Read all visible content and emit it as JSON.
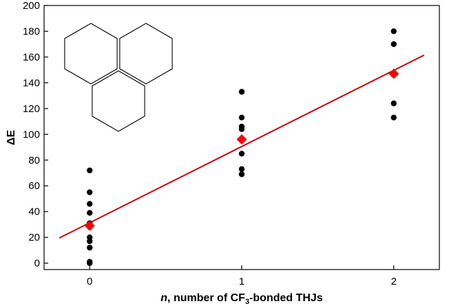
{
  "chart_data": {
    "type": "scatter",
    "title": "",
    "xlabel_italic": "n",
    "xlabel_prefix": ", number of CF",
    "xlabel_sub": "3",
    "xlabel_suffix": "-bonded THJs",
    "ylabel": "ΔE",
    "xlim": [
      -0.3,
      2.3
    ],
    "ylim": [
      -5,
      200
    ],
    "xticks": [
      0,
      1,
      2
    ],
    "yticks": [
      0,
      20,
      40,
      60,
      80,
      100,
      120,
      140,
      160,
      180,
      200
    ],
    "grid": false,
    "legend": "none",
    "series": [
      {
        "kind": "points",
        "color": "#000000",
        "marker": "circle",
        "points": [
          [
            0,
            72
          ],
          [
            0,
            55
          ],
          [
            0,
            46
          ],
          [
            0,
            39
          ],
          [
            0,
            31
          ],
          [
            0,
            28
          ],
          [
            0,
            20
          ],
          [
            0,
            17
          ],
          [
            0,
            12
          ],
          [
            0,
            1
          ],
          [
            0,
            0
          ],
          [
            1,
            133
          ],
          [
            1,
            113
          ],
          [
            1,
            106
          ],
          [
            1,
            104
          ],
          [
            1,
            96
          ],
          [
            1,
            85
          ],
          [
            1,
            73
          ],
          [
            1,
            69
          ],
          [
            2,
            180
          ],
          [
            2,
            170
          ],
          [
            2,
            124
          ],
          [
            2,
            113
          ]
        ]
      },
      {
        "kind": "means",
        "color": "#ff0000",
        "marker": "diamond",
        "points": [
          [
            0,
            29
          ],
          [
            1,
            96
          ],
          [
            2,
            147
          ]
        ]
      },
      {
        "kind": "fit",
        "color": "#d00000",
        "points": [
          [
            -0.2,
            19.5
          ],
          [
            2.2,
            161.5
          ]
        ]
      }
    ],
    "inset": {
      "icon": "fused-hexagon-trimer-icon",
      "description_shape": "three fused hexagons"
    }
  }
}
